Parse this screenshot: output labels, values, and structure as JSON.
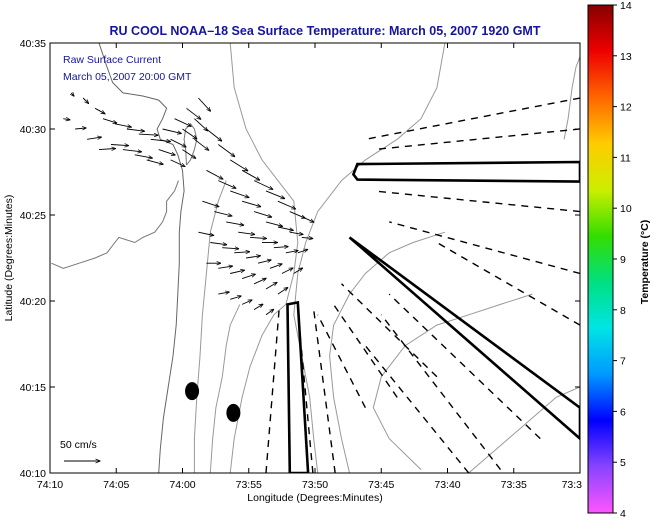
{
  "chart_data": {
    "type": "map",
    "title": "RU COOL  NOAA–18  Sea Surface Temperature:  March 05, 2007 1920 GMT",
    "xlabel": "Longitude (Degrees:Minutes)",
    "ylabel": "Latitude (Degrees:Minutes)",
    "x_ticks": [
      "74:10",
      "74:05",
      "74:00",
      "73:55",
      "73:50",
      "73:45",
      "73:40",
      "73:35",
      "73:3"
    ],
    "y_ticks": [
      "40:10",
      "40:15",
      "40:20",
      "40:25",
      "40:30",
      "40:35"
    ],
    "xlim": [
      -74.1667,
      -73.5
    ],
    "ylim": [
      40.1667,
      40.5833
    ],
    "annotation_lines": [
      "Raw Surface Current",
      "March 05, 2007 20:00 GMT"
    ],
    "scale_label": "50 cm/s",
    "colorbar": {
      "label": "Temperature (°C)",
      "min": 4,
      "max": 14,
      "ticks": [
        "4",
        "5",
        "6",
        "7",
        "8",
        "9",
        "10",
        "11",
        "12",
        "13",
        "14"
      ],
      "colors": [
        "#ff55ff",
        "#8844ff",
        "#0000ff",
        "#0099ff",
        "#00e5e5",
        "#00e080",
        "#33dd00",
        "#ccee00",
        "#ffcc00",
        "#ff6600",
        "#ee0000",
        "#880000"
      ]
    },
    "current_vectors": [
      {
        "lon": -74.14,
        "lat": 40.535,
        "u": 5,
        "v": -6
      },
      {
        "lon": -74.125,
        "lat": 40.53,
        "u": 10,
        "v": -10
      },
      {
        "lon": -74.11,
        "lat": 40.52,
        "u": 18,
        "v": -10
      },
      {
        "lon": -74.1,
        "lat": 40.51,
        "u": 25,
        "v": -8
      },
      {
        "lon": -74.085,
        "lat": 40.505,
        "u": 30,
        "v": -6
      },
      {
        "lon": -74.07,
        "lat": 40.5,
        "u": 32,
        "v": -4
      },
      {
        "lon": -74.055,
        "lat": 40.495,
        "u": 35,
        "v": -2
      },
      {
        "lon": -74.04,
        "lat": 40.49,
        "u": 36,
        "v": -4
      },
      {
        "lon": -74.025,
        "lat": 40.5,
        "u": 34,
        "v": -8
      },
      {
        "lon": -74.01,
        "lat": 40.51,
        "u": 30,
        "v": -14
      },
      {
        "lon": -73.995,
        "lat": 40.52,
        "u": 26,
        "v": -20
      },
      {
        "lon": -73.98,
        "lat": 40.53,
        "u": 22,
        "v": -24
      },
      {
        "lon": -74.15,
        "lat": 40.51,
        "u": 12,
        "v": -2
      },
      {
        "lon": -74.135,
        "lat": 40.5,
        "u": 20,
        "v": 2
      },
      {
        "lon": -74.12,
        "lat": 40.49,
        "u": 26,
        "v": 4
      },
      {
        "lon": -74.105,
        "lat": 40.48,
        "u": 30,
        "v": 2
      },
      {
        "lon": -74.09,
        "lat": 40.485,
        "u": 32,
        "v": -2
      },
      {
        "lon": -74.075,
        "lat": 40.48,
        "u": 34,
        "v": -4
      },
      {
        "lon": -74.06,
        "lat": 40.475,
        "u": 32,
        "v": -6
      },
      {
        "lon": -74.045,
        "lat": 40.47,
        "u": 30,
        "v": -8
      },
      {
        "lon": -74.03,
        "lat": 40.48,
        "u": 30,
        "v": -10
      },
      {
        "lon": -74.015,
        "lat": 40.49,
        "u": 28,
        "v": -14
      },
      {
        "lon": -74.0,
        "lat": 40.5,
        "u": 26,
        "v": -18
      },
      {
        "lon": -73.985,
        "lat": 40.51,
        "u": 24,
        "v": -22
      },
      {
        "lon": -74.015,
        "lat": 40.47,
        "u": 26,
        "v": -12
      },
      {
        "lon": -74.0,
        "lat": 40.48,
        "u": 24,
        "v": -16
      },
      {
        "lon": -73.985,
        "lat": 40.49,
        "u": 26,
        "v": -20
      },
      {
        "lon": -73.97,
        "lat": 40.5,
        "u": 28,
        "v": -22
      },
      {
        "lon": -73.955,
        "lat": 40.485,
        "u": 30,
        "v": -22
      },
      {
        "lon": -73.94,
        "lat": 40.47,
        "u": 32,
        "v": -20
      },
      {
        "lon": -73.925,
        "lat": 40.46,
        "u": 32,
        "v": -18
      },
      {
        "lon": -73.91,
        "lat": 40.45,
        "u": 34,
        "v": -16
      },
      {
        "lon": -73.895,
        "lat": 40.44,
        "u": 34,
        "v": -14
      },
      {
        "lon": -73.88,
        "lat": 40.43,
        "u": 32,
        "v": -14
      },
      {
        "lon": -73.865,
        "lat": 40.42,
        "u": 28,
        "v": -12
      },
      {
        "lon": -73.85,
        "lat": 40.415,
        "u": 22,
        "v": -10
      },
      {
        "lon": -73.97,
        "lat": 40.46,
        "u": 30,
        "v": -16
      },
      {
        "lon": -73.955,
        "lat": 40.45,
        "u": 32,
        "v": -14
      },
      {
        "lon": -73.94,
        "lat": 40.44,
        "u": 34,
        "v": -12
      },
      {
        "lon": -73.925,
        "lat": 40.43,
        "u": 34,
        "v": -10
      },
      {
        "lon": -73.91,
        "lat": 40.42,
        "u": 32,
        "v": -10
      },
      {
        "lon": -73.895,
        "lat": 40.41,
        "u": 30,
        "v": -8
      },
      {
        "lon": -73.88,
        "lat": 40.405,
        "u": 28,
        "v": -6
      },
      {
        "lon": -73.865,
        "lat": 40.4,
        "u": 24,
        "v": -4
      },
      {
        "lon": -73.85,
        "lat": 40.395,
        "u": 20,
        "v": -2
      },
      {
        "lon": -73.975,
        "lat": 40.43,
        "u": 30,
        "v": -10
      },
      {
        "lon": -73.96,
        "lat": 40.42,
        "u": 32,
        "v": -8
      },
      {
        "lon": -73.945,
        "lat": 40.41,
        "u": 32,
        "v": -6
      },
      {
        "lon": -73.93,
        "lat": 40.4,
        "u": 30,
        "v": -4
      },
      {
        "lon": -73.915,
        "lat": 40.395,
        "u": 30,
        "v": -2
      },
      {
        "lon": -73.9,
        "lat": 40.39,
        "u": 28,
        "v": 0
      },
      {
        "lon": -73.885,
        "lat": 40.385,
        "u": 26,
        "v": 2
      },
      {
        "lon": -73.87,
        "lat": 40.38,
        "u": 22,
        "v": 4
      },
      {
        "lon": -73.855,
        "lat": 40.38,
        "u": 18,
        "v": 6
      },
      {
        "lon": -73.98,
        "lat": 40.4,
        "u": 28,
        "v": -6
      },
      {
        "lon": -73.965,
        "lat": 40.39,
        "u": 30,
        "v": -4
      },
      {
        "lon": -73.95,
        "lat": 40.385,
        "u": 30,
        "v": -2
      },
      {
        "lon": -73.935,
        "lat": 40.38,
        "u": 28,
        "v": 2
      },
      {
        "lon": -73.92,
        "lat": 40.375,
        "u": 26,
        "v": 4
      },
      {
        "lon": -73.905,
        "lat": 40.37,
        "u": 24,
        "v": 6
      },
      {
        "lon": -73.89,
        "lat": 40.365,
        "u": 22,
        "v": 8
      },
      {
        "lon": -73.875,
        "lat": 40.36,
        "u": 20,
        "v": 10
      },
      {
        "lon": -73.86,
        "lat": 40.36,
        "u": 16,
        "v": 10
      },
      {
        "lon": -73.97,
        "lat": 40.37,
        "u": 26,
        "v": 0
      },
      {
        "lon": -73.955,
        "lat": 40.365,
        "u": 26,
        "v": 4
      },
      {
        "lon": -73.94,
        "lat": 40.36,
        "u": 26,
        "v": 6
      },
      {
        "lon": -73.925,
        "lat": 40.355,
        "u": 24,
        "v": 8
      },
      {
        "lon": -73.91,
        "lat": 40.35,
        "u": 22,
        "v": 10
      },
      {
        "lon": -73.895,
        "lat": 40.345,
        "u": 20,
        "v": 12
      },
      {
        "lon": -73.88,
        "lat": 40.34,
        "u": 18,
        "v": 12
      },
      {
        "lon": -73.955,
        "lat": 40.34,
        "u": 20,
        "v": 4
      },
      {
        "lon": -73.94,
        "lat": 40.335,
        "u": 20,
        "v": 6
      },
      {
        "lon": -73.925,
        "lat": 40.33,
        "u": 18,
        "v": 8
      },
      {
        "lon": -73.91,
        "lat": 40.325,
        "u": 16,
        "v": 10
      },
      {
        "lon": -73.895,
        "lat": 40.32,
        "u": 14,
        "v": 10
      }
    ],
    "coastline": [
      [
        -74.105,
        40.5833
      ],
      [
        -74.095,
        40.56
      ],
      [
        -74.088,
        40.545
      ],
      [
        -74.075,
        40.535
      ],
      [
        -74.05,
        40.532
      ],
      [
        -74.03,
        40.528
      ],
      [
        -74.02,
        40.52
      ],
      [
        -74.025,
        40.51
      ],
      [
        -74.032,
        40.5
      ],
      [
        -74.028,
        40.49
      ],
      [
        -74.012,
        40.485
      ],
      [
        -74.006,
        40.475
      ],
      [
        -74.0,
        40.46
      ],
      [
        -73.998,
        40.44
      ],
      [
        -74.002,
        40.42
      ],
      [
        -74.004,
        40.4
      ],
      [
        -74.004,
        40.37
      ],
      [
        -74.006,
        40.34
      ],
      [
        -74.008,
        40.31
      ],
      [
        -74.012,
        40.28
      ],
      [
        -74.018,
        40.25
      ],
      [
        -74.024,
        40.22
      ],
      [
        -74.028,
        40.19
      ],
      [
        -74.03,
        40.1667
      ]
    ],
    "contours": [
      [
        [
          -73.985,
          40.1667
        ],
        [
          -73.985,
          40.2
        ],
        [
          -73.982,
          40.24
        ],
        [
          -73.978,
          40.28
        ],
        [
          -73.975,
          40.32
        ],
        [
          -73.97,
          40.36
        ],
        [
          -73.965,
          40.4
        ],
        [
          -73.955,
          40.43
        ],
        [
          -73.945,
          40.45
        ]
      ],
      [
        [
          -73.965,
          40.1667
        ],
        [
          -73.962,
          40.2
        ],
        [
          -73.958,
          40.23
        ],
        [
          -73.95,
          40.26
        ],
        [
          -73.945,
          40.29
        ],
        [
          -73.94,
          40.31
        ],
        [
          -73.928,
          40.33
        ]
      ],
      [
        [
          -73.94,
          40.1667
        ],
        [
          -73.935,
          40.2
        ],
        [
          -73.925,
          40.24
        ],
        [
          -73.915,
          40.27
        ],
        [
          -73.9,
          40.3
        ],
        [
          -73.885,
          40.32
        ],
        [
          -73.87,
          40.33
        ],
        [
          -73.86,
          40.36
        ],
        [
          -73.855,
          40.39
        ],
        [
          -73.86,
          40.43
        ],
        [
          -73.88,
          40.45
        ],
        [
          -73.9,
          40.47
        ],
        [
          -73.92,
          40.5
        ],
        [
          -73.935,
          40.54
        ],
        [
          -73.94,
          40.5833
        ]
      ],
      [
        [
          -73.83,
          40.1667
        ],
        [
          -73.835,
          40.2
        ],
        [
          -73.84,
          40.24
        ],
        [
          -73.85,
          40.28
        ],
        [
          -73.86,
          40.32
        ],
        [
          -73.855,
          40.36
        ],
        [
          -73.845,
          40.39
        ],
        [
          -73.83,
          40.42
        ],
        [
          -73.8,
          40.45
        ],
        [
          -73.77,
          40.47
        ],
        [
          -73.73,
          40.49
        ],
        [
          -73.7,
          40.51
        ],
        [
          -73.68,
          40.54
        ],
        [
          -73.67,
          40.5833
        ]
      ],
      [
        [
          -73.79,
          40.1667
        ],
        [
          -73.8,
          40.2
        ],
        [
          -73.81,
          40.24
        ],
        [
          -73.815,
          40.28
        ],
        [
          -73.81,
          40.31
        ],
        [
          -73.79,
          40.34
        ],
        [
          -73.77,
          40.36
        ],
        [
          -73.74,
          40.38
        ],
        [
          -73.71,
          40.39
        ],
        [
          -73.67,
          40.4
        ]
      ],
      [
        [
          -73.7,
          40.17
        ],
        [
          -73.74,
          40.2
        ],
        [
          -73.76,
          40.23
        ],
        [
          -73.75,
          40.26
        ],
        [
          -73.72,
          40.29
        ],
        [
          -73.68,
          40.31
        ],
        [
          -73.64,
          40.32
        ],
        [
          -73.6,
          40.33
        ],
        [
          -73.56,
          40.34
        ]
      ],
      [
        [
          -73.64,
          40.1667
        ],
        [
          -73.62,
          40.18
        ],
        [
          -73.59,
          40.2
        ],
        [
          -73.56,
          40.22
        ],
        [
          -73.53,
          40.24
        ],
        [
          -73.5,
          40.25
        ]
      ],
      [
        [
          -73.52,
          40.49
        ],
        [
          -73.515,
          40.51
        ],
        [
          -73.51,
          40.54
        ],
        [
          -73.505,
          40.56
        ],
        [
          -73.5,
          40.57
        ]
      ]
    ],
    "river_outline": [
      [
        -74.165,
        40.37
      ],
      [
        -74.15,
        40.365
      ],
      [
        -74.13,
        40.37
      ],
      [
        -74.11,
        40.375
      ],
      [
        -74.095,
        40.38
      ],
      [
        -74.085,
        40.39
      ],
      [
        -74.08,
        40.395
      ],
      [
        -74.06,
        40.39
      ],
      [
        -74.05,
        40.395
      ],
      [
        -74.035,
        40.4
      ],
      [
        -74.025,
        40.41
      ],
      [
        -74.02,
        40.42
      ],
      [
        -74.02,
        40.43
      ],
      [
        -74.01,
        40.44
      ],
      [
        -74.005,
        40.45
      ]
    ],
    "sandy_hook": [
      [
        -73.995,
        40.465
      ],
      [
        -73.99,
        40.47
      ],
      [
        -73.985,
        40.48
      ],
      [
        -73.982,
        40.49
      ],
      [
        -73.985,
        40.5
      ],
      [
        -73.99,
        40.505
      ],
      [
        -73.996,
        40.5
      ],
      [
        -73.998,
        40.49
      ],
      [
        -73.996,
        40.48
      ],
      [
        -73.995,
        40.465
      ]
    ],
    "disposal_sites": [
      [
        [
          -73.865,
          40.1667
        ],
        [
          -73.868,
          40.33
        ],
        [
          -73.855,
          40.332
        ],
        [
          -73.842,
          40.1667
        ]
      ],
      [
        [
          -73.785,
          40.456
        ],
        [
          -73.78,
          40.466
        ],
        [
          -73.5,
          40.468
        ],
        [
          -73.5,
          40.449
        ],
        [
          -73.78,
          40.451
        ]
      ],
      [
        [
          -73.775,
          40.385
        ],
        [
          -73.79,
          40.395
        ],
        [
          -73.5,
          40.23
        ],
        [
          -73.5,
          40.2
        ]
      ]
    ],
    "dashed_lines": [
      [
        [
          -73.895,
          40.1667
        ],
        [
          -73.878,
          40.33
        ]
      ],
      [
        [
          -73.836,
          40.1667
        ],
        [
          -73.855,
          40.325
        ]
      ],
      [
        [
          -73.808,
          40.1667
        ],
        [
          -73.835,
          40.325
        ]
      ],
      [
        [
          -73.77,
          40.23
        ],
        [
          -73.83,
          40.32
        ]
      ],
      [
        [
          -73.73,
          40.24
        ],
        [
          -73.81,
          40.33
        ]
      ],
      [
        [
          -73.68,
          40.26
        ],
        [
          -73.8,
          40.35
        ]
      ],
      [
        [
          -73.64,
          40.1667
        ],
        [
          -73.77,
          40.29
        ]
      ],
      [
        [
          -73.6,
          40.17
        ],
        [
          -73.75,
          40.32
        ]
      ],
      [
        [
          -73.55,
          40.2
        ],
        [
          -73.74,
          40.34
        ]
      ],
      [
        [
          -73.5,
          40.31
        ],
        [
          -73.68,
          40.39
        ]
      ],
      [
        [
          -73.5,
          40.36
        ],
        [
          -73.74,
          40.41
        ]
      ],
      [
        [
          -73.5,
          40.42
        ],
        [
          -73.76,
          40.44
        ]
      ],
      [
        [
          -73.5,
          40.5
        ],
        [
          -73.76,
          40.48
        ]
      ],
      [
        [
          -73.5,
          40.53
        ],
        [
          -73.77,
          40.49
        ]
      ]
    ],
    "buoys": [
      {
        "lon": -73.988,
        "lat": 40.246
      },
      {
        "lon": -73.936,
        "lat": 40.225
      }
    ]
  }
}
